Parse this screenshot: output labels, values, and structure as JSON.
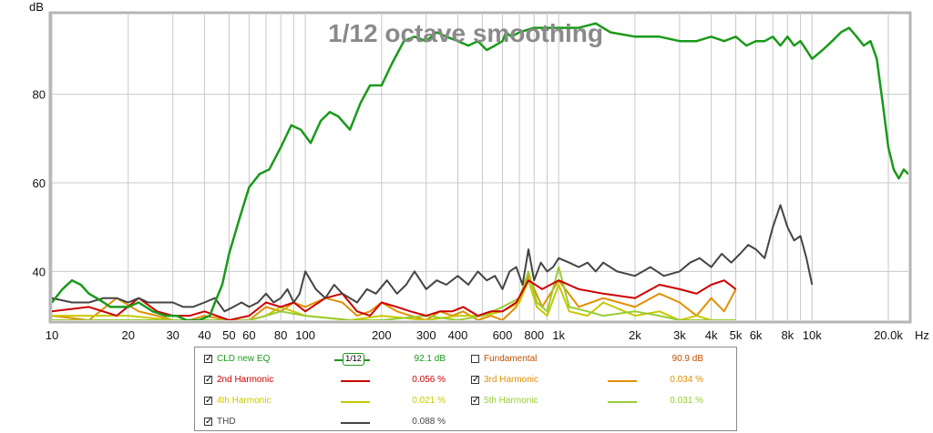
{
  "chart_data": {
    "type": "line",
    "title": "1/12 octave smoothing",
    "ylabel": "dB",
    "xlabel": "Hz",
    "x_scale": "log",
    "xlim": [
      10,
      24000
    ],
    "ylim": [
      29,
      98
    ],
    "x_ticks": [
      {
        "v": 10,
        "label": "10"
      },
      {
        "v": 20,
        "label": "20"
      },
      {
        "v": 30,
        "label": "30"
      },
      {
        "v": 40,
        "label": "40"
      },
      {
        "v": 50,
        "label": "50"
      },
      {
        "v": 60,
        "label": "60"
      },
      {
        "v": 80,
        "label": "80"
      },
      {
        "v": 100,
        "label": "100"
      },
      {
        "v": 200,
        "label": "200"
      },
      {
        "v": 300,
        "label": "300"
      },
      {
        "v": 400,
        "label": "400"
      },
      {
        "v": 600,
        "label": "600"
      },
      {
        "v": 800,
        "label": "800"
      },
      {
        "v": 1000,
        "label": "1k"
      },
      {
        "v": 2000,
        "label": "2k"
      },
      {
        "v": 3000,
        "label": "3k"
      },
      {
        "v": 4000,
        "label": "4k"
      },
      {
        "v": 5000,
        "label": "5k"
      },
      {
        "v": 6000,
        "label": "6k"
      },
      {
        "v": 8000,
        "label": "8k"
      },
      {
        "v": 10000,
        "label": "10k"
      },
      {
        "v": 20000,
        "label": "20.0k"
      }
    ],
    "y_ticks": [
      {
        "v": 40,
        "label": "40"
      },
      {
        "v": 60,
        "label": "60"
      },
      {
        "v": 80,
        "label": "80"
      }
    ],
    "grid": true,
    "series": [
      {
        "name": "CLD new EQ",
        "color": "#1a9a1a",
        "x": [
          10,
          11,
          12,
          13,
          14,
          15,
          16,
          17,
          18,
          19,
          20,
          22,
          25,
          28,
          31,
          34,
          38,
          42,
          44,
          47,
          50,
          55,
          60,
          66,
          72,
          80,
          88,
          96,
          105,
          115,
          125,
          135,
          150,
          165,
          180,
          200,
          220,
          245,
          270,
          300,
          330,
          360,
          400,
          440,
          480,
          520,
          560,
          600,
          620,
          650,
          700,
          800,
          1000,
          1200,
          1400,
          1600,
          2000,
          2500,
          3000,
          3500,
          4000,
          4500,
          5000,
          5500,
          6000,
          6500,
          7000,
          7500,
          8000,
          8500,
          9000,
          9500,
          10000,
          11000,
          12000,
          13000,
          14000,
          15000,
          16000,
          17000,
          18000,
          19000,
          20000,
          21000,
          22000,
          23000,
          24000
        ],
        "y": [
          33,
          36,
          38,
          37,
          35,
          34,
          33,
          32,
          32,
          32,
          32,
          33,
          31,
          30,
          30,
          29,
          29,
          30,
          33,
          37,
          44,
          52,
          59,
          62,
          63,
          68,
          73,
          72,
          69,
          74,
          76,
          75,
          72,
          78,
          82,
          82,
          87,
          92,
          93,
          92,
          94,
          93,
          92,
          91,
          92,
          90,
          91,
          92,
          94,
          93,
          94,
          95,
          95,
          95,
          96,
          94,
          93,
          93,
          92,
          92,
          93,
          92,
          93,
          91,
          92,
          92,
          93,
          91,
          93,
          91,
          92,
          90,
          88,
          90,
          92,
          94,
          95,
          93,
          91,
          92,
          88,
          78,
          68,
          63,
          61,
          63,
          62
        ]
      },
      {
        "name": "2nd Harmonic",
        "color": "#cc0000",
        "x": [
          10,
          14,
          18,
          22,
          26,
          30,
          35,
          40,
          50,
          60,
          70,
          80,
          90,
          100,
          120,
          140,
          160,
          180,
          200,
          230,
          260,
          300,
          340,
          380,
          420,
          480,
          540,
          600,
          680,
          760,
          860,
          1000,
          1200,
          1500,
          2000,
          2500,
          3000,
          3500,
          4000,
          4500,
          5000
        ],
        "y": [
          31,
          32,
          30,
          34,
          31,
          30,
          30,
          31,
          29,
          30,
          33,
          32,
          33,
          31,
          34,
          35,
          31,
          30,
          33,
          32,
          31,
          30,
          31,
          31,
          32,
          30,
          31,
          31,
          33,
          38,
          36,
          38,
          36,
          35,
          34,
          37,
          36,
          35,
          37,
          38,
          36
        ]
      },
      {
        "name": "3rd Harmonic",
        "color": "#e09000",
        "x": [
          10,
          14,
          18,
          22,
          26,
          30,
          35,
          40,
          50,
          60,
          70,
          80,
          90,
          100,
          120,
          140,
          160,
          180,
          200,
          230,
          260,
          300,
          340,
          380,
          420,
          480,
          540,
          600,
          680,
          760,
          860,
          1000,
          1200,
          1500,
          2000,
          2500,
          3000,
          3500,
          4000,
          4500,
          5000
        ],
        "y": [
          30,
          29,
          34,
          31,
          30,
          29,
          29,
          30,
          29,
          29,
          32,
          31,
          33,
          32,
          34,
          33,
          30,
          31,
          33,
          31,
          30,
          29,
          31,
          30,
          31,
          29,
          30,
          29,
          32,
          39,
          32,
          38,
          32,
          34,
          32,
          35,
          33,
          30,
          34,
          31,
          36
        ]
      },
      {
        "name": "4th Harmonic",
        "color": "#c8c800",
        "x": [
          10,
          20,
          30,
          40,
          50,
          60,
          70,
          80,
          100,
          150,
          200,
          300,
          400,
          500,
          600,
          700,
          760,
          820,
          900,
          1000,
          1100,
          1300,
          1500,
          2000,
          2500,
          3000,
          3500,
          4000,
          5000
        ],
        "y": [
          30,
          30,
          29,
          29,
          29,
          29,
          30,
          32,
          30,
          29,
          30,
          29,
          30,
          30,
          31,
          33,
          38,
          32,
          30,
          37,
          31,
          30,
          33,
          30,
          31,
          29,
          30,
          29,
          29
        ]
      },
      {
        "name": "5th Harmonic",
        "color": "#99cc33",
        "x": [
          10,
          20,
          30,
          40,
          50,
          60,
          70,
          80,
          100,
          150,
          200,
          300,
          400,
          500,
          600,
          700,
          760,
          820,
          900,
          1000,
          1100,
          1300,
          1500,
          2000,
          2500,
          3000,
          3500,
          4000,
          5000
        ],
        "y": [
          29,
          29,
          29,
          29,
          29,
          29,
          30,
          31,
          30,
          29,
          29,
          30,
          29,
          30,
          32,
          34,
          40,
          33,
          31,
          41,
          32,
          31,
          30,
          31,
          30,
          29,
          29,
          29,
          29
        ]
      },
      {
        "name": "THD",
        "color": "#444444",
        "x": [
          10,
          12,
          14,
          16,
          18,
          20,
          22,
          24,
          26,
          28,
          30,
          33,
          36,
          40,
          44,
          48,
          52,
          56,
          60,
          65,
          70,
          75,
          80,
          85,
          90,
          95,
          100,
          110,
          120,
          130,
          140,
          150,
          160,
          175,
          190,
          210,
          230,
          250,
          270,
          300,
          330,
          360,
          400,
          440,
          480,
          520,
          560,
          600,
          640,
          680,
          720,
          760,
          800,
          850,
          900,
          950,
          1000,
          1100,
          1200,
          1300,
          1400,
          1500,
          1700,
          2000,
          2300,
          2600,
          3000,
          3300,
          3600,
          4000,
          4400,
          4800,
          5200,
          5600,
          6000,
          6500,
          7000,
          7500,
          8000,
          8500,
          9000,
          9500,
          10000
        ],
        "y": [
          34,
          33,
          33,
          34,
          34,
          33,
          34,
          33,
          33,
          33,
          33,
          32,
          32,
          33,
          34,
          31,
          32,
          33,
          32,
          33,
          35,
          33,
          34,
          36,
          33,
          35,
          40,
          36,
          34,
          37,
          35,
          34,
          33,
          36,
          35,
          38,
          35,
          37,
          40,
          36,
          38,
          37,
          39,
          37,
          40,
          38,
          39,
          36,
          40,
          41,
          37,
          45,
          38,
          42,
          40,
          41,
          43,
          42,
          41,
          42,
          40,
          42,
          40,
          39,
          41,
          39,
          40,
          42,
          43,
          41,
          44,
          42,
          44,
          46,
          45,
          43,
          50,
          55,
          50,
          47,
          48,
          43,
          37
        ]
      }
    ]
  },
  "legend": {
    "left": [
      {
        "label": "CLD new EQ",
        "value": "92.1 dB",
        "checked": true,
        "color": "#1a9a1a",
        "badge": "1/12"
      },
      {
        "label": "2nd Harmonic",
        "value": "0.056 %",
        "checked": true,
        "color": "#cc0000"
      },
      {
        "label": "4th Harmonic",
        "value": "0.021 %",
        "checked": true,
        "color": "#c8c800"
      },
      {
        "label": "THD",
        "value": "0.088 %",
        "checked": true,
        "color": "#444444"
      }
    ],
    "right": [
      {
        "label": "Fundamental",
        "value": "90.9 dB",
        "checked": false,
        "color": "#c05000"
      },
      {
        "label": "3rd Harmonic",
        "value": "0.034 %",
        "checked": true,
        "color": "#e09000"
      },
      {
        "label": "5th Harmonic",
        "value": "0.031 %",
        "checked": true,
        "color": "#99cc33"
      }
    ]
  }
}
